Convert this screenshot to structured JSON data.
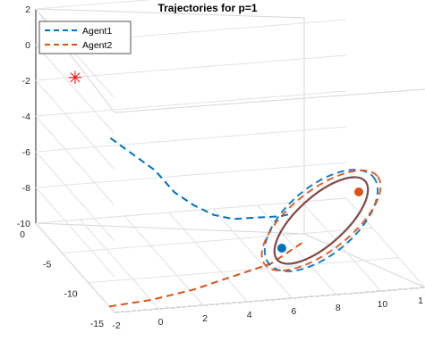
{
  "chart_data": {
    "type": "line",
    "title": "Trajectories for p=1",
    "xlabel": "",
    "ylabel": "",
    "zlabel": "",
    "xlim": [
      -2,
      12
    ],
    "ylim": [
      -15,
      0
    ],
    "zlim": [
      -10,
      2
    ],
    "x_ticks": [
      "-2",
      "0",
      "2",
      "4",
      "6",
      "8",
      "10",
      "1"
    ],
    "y_ticks": [
      "0",
      "-5",
      "-10",
      "-15"
    ],
    "z_ticks": [
      "2",
      "0",
      "-2",
      "-4",
      "-6",
      "-8",
      "-10"
    ],
    "grid": true,
    "legend_position": "top-left",
    "series": [
      {
        "name": "Agent1",
        "style": "dashed",
        "color": "#0072BD",
        "points": [
          [
            -1,
            -10,
            -2
          ],
          [
            1,
            -10,
            -4
          ],
          [
            2,
            -9.5,
            -5.5
          ],
          [
            3,
            -9,
            -6.5
          ],
          [
            4,
            -8.5,
            -7.3
          ],
          [
            5,
            -8,
            -7.8
          ],
          [
            6,
            -7.5,
            -8
          ],
          [
            6.8,
            -7,
            -8.2
          ],
          [
            7.5,
            -6.5,
            -8.4
          ],
          [
            8,
            -6,
            -8.5
          ]
        ]
      },
      {
        "name": "Agent2",
        "style": "dashed",
        "color": "#D95319",
        "points": [
          [
            -2,
            -14,
            -10
          ],
          [
            0,
            -13.5,
            -10
          ],
          [
            2,
            -13,
            -9.8
          ],
          [
            4,
            -12,
            -9.6
          ],
          [
            6,
            -11,
            -9.4
          ],
          [
            7,
            -10,
            -9.2
          ],
          [
            8,
            -9,
            -9
          ]
        ]
      }
    ],
    "target_marker": {
      "symbol": "*",
      "color": "#FF0000",
      "x": -2,
      "y": -15,
      "z": 0
    },
    "endpoints": [
      {
        "label": "Agent1",
        "color": "#0072BD",
        "x": 8,
        "y": -6,
        "z": -8.5
      },
      {
        "label": "Agent2",
        "color": "#D95319",
        "x": 8,
        "y": -9,
        "z": -9
      }
    ]
  }
}
